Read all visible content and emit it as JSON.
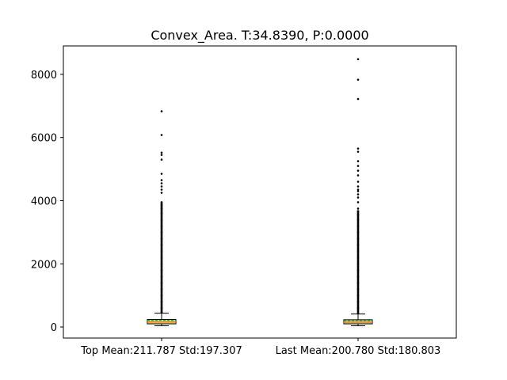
{
  "chart_data": {
    "type": "box",
    "title": "Convex_Area. T:34.8390, P:0.0000",
    "xlabel": "",
    "ylabel": "",
    "categories": [
      "Top Mean:211.787 Std:197.307",
      "Last Mean:200.780 Std:180.803"
    ],
    "ylim": [
      -350,
      8900
    ],
    "yticks": [
      0,
      2000,
      4000,
      6000,
      8000
    ],
    "grid": false,
    "boxes": [
      {
        "whisker_low": 40,
        "q1": 100,
        "median": 160,
        "mean": 211.787,
        "q3": 240,
        "whisker_high": 440,
        "outliers": [
          450,
          600,
          800,
          1000,
          1200,
          1400,
          1600,
          1800,
          2000,
          2200,
          2400,
          2600,
          2800,
          3000,
          3200,
          3400,
          3600,
          3750,
          3850,
          3950,
          4250,
          4350,
          4450,
          4550,
          4650,
          4850,
          5300,
          5450,
          5520,
          6080,
          6830
        ]
      },
      {
        "whisker_low": 40,
        "q1": 100,
        "median": 150,
        "mean": 200.78,
        "q3": 230,
        "whisker_high": 410,
        "outliers": [
          430,
          600,
          800,
          1000,
          1200,
          1400,
          1600,
          1800,
          2000,
          2200,
          2400,
          2600,
          2800,
          3000,
          3200,
          3400,
          3550,
          3650,
          3750,
          3950,
          4100,
          4200,
          4300,
          4350,
          4450,
          4600,
          4800,
          4950,
          5100,
          5250,
          5550,
          5650,
          7220,
          7830,
          8480
        ]
      }
    ],
    "colors": {
      "box_edge": "#000000",
      "box_fill": "#bcd9a0",
      "median": "#ff7f0e",
      "mean": "#2ca02c",
      "outlier": "#000000"
    }
  }
}
